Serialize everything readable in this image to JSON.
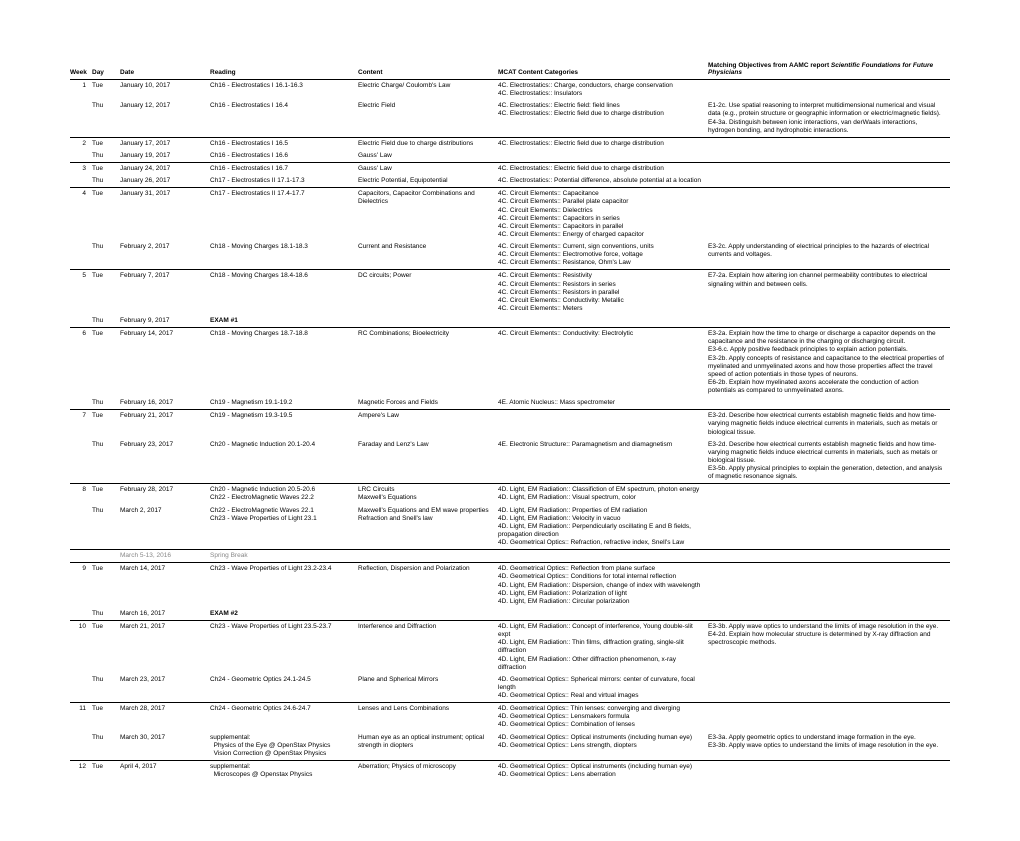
{
  "headers": {
    "week": "Week",
    "day": "Day",
    "date": "Date",
    "reading": "Reading",
    "content": "Content",
    "mcat": "MCAT Content Categories",
    "objectives_html": "Matching Objectives from AAMC report <i>Scientific Foundations for Future Physicians</i>"
  },
  "rows": [
    {
      "week": "1",
      "day": "Tue",
      "date": "January 10, 2017",
      "reading": "Ch16 - Electrostatics I 16.1-16.3",
      "content": "Electric Charge/ Coulomb's Law",
      "mcat": "4C. Electrostatics:: Charge, conductors, charge conservation<br>4C. Electrostatics:: Insulators",
      "obj": ""
    },
    {
      "week": "",
      "day": "Thu",
      "date": "January 12, 2017",
      "reading": "Ch16 - Electrostatics I 16.4",
      "content": "Electric Field",
      "mcat": "4C. Electrostatics:: Electric field: field lines<br>4C. Electrostatics:: Electric field due to charge distribution",
      "obj": "E1-2c. Use spatial reasoning to interpret multidimensional numerical and visual data (e.g., protein structure or geographic information or electric/magnetic fields).<br>E4-3a. Distinguish between ionic interactions, van derWaals interactions, hydrogen bonding, and hydrophobic interactions.",
      "sep": true
    },
    {
      "week": "2",
      "day": "Tue",
      "date": "January 17, 2017",
      "reading": "Ch16 - Electrostatics I 16.5",
      "content": "Electric Field due to charge distributions",
      "mcat": "4C. Electrostatics:: Electric field due to charge distribution",
      "obj": ""
    },
    {
      "week": "",
      "day": "Thu",
      "date": "January 19, 2017",
      "reading": "Ch16 - Electrostatics I 16.6",
      "content": "Gauss' Law",
      "mcat": "",
      "obj": "",
      "sep": true
    },
    {
      "week": "3",
      "day": "Tue",
      "date": "January 24, 2017",
      "reading": "Ch16 - Electrostatics I 16.7",
      "content": "Gauss' Law",
      "mcat": "4C. Electrostatics:: Electric field due to charge distribution",
      "obj": ""
    },
    {
      "week": "",
      "day": "Thu",
      "date": "January 26, 2017",
      "reading": "Ch17 - Electrostatics II 17.1-17.3",
      "content": "Electric Potential, Equipotential",
      "mcat": "4C. Electrostatics:: Potential difference, absolute potential at a location",
      "obj": "",
      "sep": true
    },
    {
      "week": "4",
      "day": "Tue",
      "date": "January 31, 2017",
      "reading": "Ch17 - Electrostatics II 17.4-17.7",
      "content": "Capacitors, Capacitor Combinations and Dielectrics",
      "mcat": "4C. Circuit Elements:: Capacitance<br>4C. Circuit Elements:: Parallel plate capacitor<br>4C. Circuit Elements:: Dielectrics<br>4C. Circuit Elements:: Capacitors in series<br>4C. Circuit Elements:: Capacitors in parallel<br>4C. Circuit Elements:: Energy of charged capacitor",
      "obj": ""
    },
    {
      "week": "",
      "day": "Thu",
      "date": "February 2, 2017",
      "reading": "Ch18 -  Moving Charges 18.1-18.3",
      "content": "Current and Resistance",
      "mcat": "4C. Circuit Elements:: Current, sign conventions, units<br>4C. Circuit Elements:: Electromotive force, voltage<br>4C. Circuit Elements:: Resistance, Ohm's Law",
      "obj": "E3-2c. Apply understanding of electrical principles to the hazards of electrical currents and voltages.",
      "sep": true
    },
    {
      "week": "5",
      "day": "Tue",
      "date": "February 7, 2017",
      "reading": "Ch18 -  Moving Charges 18.4-18.6",
      "content": "DC circuits; Power",
      "mcat": "4C. Circuit Elements:: Resistivity<br>4C. Circuit Elements:: Resistors in series<br>4C. Circuit Elements:: Resistors in parallel<br>4C. Circuit Elements:: Conductivity: Metallic<br>4C. Circuit Elements:: Meters",
      "obj": "E7-2a. Explain how altering ion channel permeability contributes to electrical signaling within and between cells."
    },
    {
      "week": "",
      "day": "Thu",
      "date": "February 9, 2017",
      "reading": "<b>EXAM #1</b>",
      "content": "",
      "mcat": "",
      "obj": "",
      "sep": true
    },
    {
      "week": "6",
      "day": "Tue",
      "date": "February 14, 2017",
      "reading": "Ch18 -  Moving Charges 18.7-18.8",
      "content": "RC Combinations; Bioelectricity",
      "mcat": "4C. Circuit Elements:: Conductivity: Electrolytic",
      "obj": "E3-2a. Explain how the time to charge or discharge a capacitor depends on the capacitance and the resistance in the charging or discharging circuit.<br>E3-6.c. Apply positive feedback principles to explain action potentials.<br>E3-2b. Apply concepts of resistance and capacitance to the electrical properties of myelinated and unmyelinated axons and how those properties affect the travel speed of action potentials in those types of neurons.<br>E6-2b. Explain how myelinated axons accelerate the conduction of action potentials as compared to unmyelinated axons."
    },
    {
      "week": "",
      "day": "Thu",
      "date": "February 16, 2017",
      "reading": "Ch19 - Magnetism 19.1-19.2",
      "content": "Magnetic Forces and Fields",
      "mcat": "4E. Atomic Nucleus:: Mass spectrometer",
      "obj": "",
      "sep": true
    },
    {
      "week": "7",
      "day": "Tue",
      "date": "February 21, 2017",
      "reading": "Ch19 - Magnetism 19.3-19.5",
      "content": "Ampere's Law",
      "mcat": "",
      "obj": "E3-2d. Describe how electrical currents establish magnetic fields and how time-varying magnetic fields induce electrical currents in materials, such as metals or biological tissue."
    },
    {
      "week": "",
      "day": "Thu",
      "date": "February 23, 2017",
      "reading": "Ch20 - Magnetic Induction 20.1-20.4",
      "content": "Faraday and Lenz's Law",
      "mcat": "4E. Electronic Structure:: Paramagnetism and diamagnetism",
      "obj": "E3-2d. Describe how electrical currents establish magnetic fields and how time-varying magnetic fields induce electrical currents in materials, such as metals or biological tissue.<br>E3-5b. Apply physical principles to explain the generation, detection, and analysis of magnetic resonance signals.",
      "sep": true
    },
    {
      "week": "8",
      "day": "Tue",
      "date": "February 28, 2017",
      "reading": "Ch20 - Magnetic Induction 20.5-20.6<br>Ch22 - ElectroMagnetic Waves 22.2",
      "content": "LRC Circuits<br>Maxwell's Equations",
      "mcat": "4D. Light, EM Radiation:: Classifiction of EM spectrum, photon energy<br>4D. Light, EM Radiation:: Visual spectrum, color",
      "obj": ""
    },
    {
      "week": "",
      "day": "Thu",
      "date": "March 2, 2017",
      "reading": "Ch22 - ElectroMagnetic Waves 22.1<br>Ch23 - Wave Properties of Light 23.1",
      "content": "Maxwell's Equations and EM wave properties<br>Refraction and Snell's law",
      "mcat": "4D. Light, EM Radiation:: Properties of EM radiation<br>4D. Light, EM Radiation:: Velocity in vacuo<br>4D. Light, EM Radiation:: Perpendicularly oscillating E and B fields, propagation direction<br>4D. Geometrical Optics:: Refraction, refractive index, Snell's Law",
      "obj": "",
      "sep": true
    },
    {
      "week": "",
      "day": "",
      "date": "<span class='break'>March 5-13, 2016</span>",
      "reading": "<span class='break'>Spring Break</span>",
      "content": "",
      "mcat": "",
      "obj": "",
      "sep": true
    },
    {
      "week": "9",
      "day": "Tue",
      "date": "March 14, 2017",
      "reading": "Ch23 - Wave Properties of Light 23.2-23.4",
      "content": "Reflection, Dispersion and Polarization",
      "mcat": "4D. Geometrical Optics:: Reflection from plane surface<br>4D. Geometrical Optics:: Conditions for total internal reflection<br>4D. Light, EM Radiation:: Dispersion, change of index with wavelength<br>4D. Light, EM Radiation:: Polarization of light<br>4D. Light, EM Radiation:: Circular polarization",
      "obj": ""
    },
    {
      "week": "",
      "day": "Thu",
      "date": "March 16, 2017",
      "reading": "<b>EXAM #2</b>",
      "content": "",
      "mcat": "",
      "obj": "",
      "sep": true
    },
    {
      "week": "10",
      "day": "Tue",
      "date": "March 21, 2017",
      "reading": "Ch23 - Wave Properties of Light 23.5-23.7",
      "content": "Interference and Diffraction",
      "mcat": "4D. Light, EM Radiation:: Concept of interference, Young double-slit expt<br>4D. Light, EM Radiation:: Thin films, diffraction grating, single-slit diffraction<br>4D. Light, EM Radiation:: Other diffraction phenomenon, x-ray diffraction",
      "obj": "E3-3b. Apply wave optics to understand the limits of image resolution in the eye.<br>E4-2d. Explain how molecular structure is determined by X-ray diffraction and spectroscopic methods."
    },
    {
      "week": "",
      "day": "Thu",
      "date": "March 23, 2017",
      "reading": "Ch24 - Geometric Optics 24.1-24.5",
      "content": "Plane and Spherical Mirrors",
      "mcat": "4D. Geometrical Optics:: Spherical mirrors: center of curvature, focal length<br>4D. Geometrical Optics:: Real and virtual images",
      "obj": "",
      "sep": true
    },
    {
      "week": "11",
      "day": "Tue",
      "date": "March 28, 2017",
      "reading": "Ch24 - Geometric Optics 24.6-24.7",
      "content": "Lenses and Lens Combinations",
      "mcat": "4D. Geometrical Optics:: Thin lenses: converging and diverging<br>4D. Geometrical Optics:: Lensmakers formula<br>4D. Geometrical Optics:: Combination of lenses",
      "obj": ""
    },
    {
      "week": "",
      "day": "Thu",
      "date": "March 30, 2017",
      "reading": "supplemental:<br>&nbsp;&nbsp;Physics of the Eye @ OpenStax Physics<br>&nbsp;&nbsp;Vision Correction @ OpenStax Physics",
      "content": "Human eye as an optical instrument; optical strength in diopters",
      "mcat": "4D. Geometrical Optics:: Optical instruments (including human eye)<br>4D. Geometrical Optics:: Lens strength, diopters",
      "obj": "E3-3a. Apply geometric optics to understand image formation in the eye.<br>E3-3b. Apply wave optics to understand the limits of image resolution in the eye.",
      "sep": true
    },
    {
      "week": "12",
      "day": "Tue",
      "date": "April 4, 2017",
      "reading": "supplemental:<br>&nbsp;&nbsp;Microscopes @ Openstax Physics",
      "content": "Aberration; Physics of microscopy",
      "mcat": "4D. Geometrical Optics:: Optical instruments (including human eye)<br>4D. Geometrical Optics:: Lens aberration",
      "obj": ""
    }
  ]
}
